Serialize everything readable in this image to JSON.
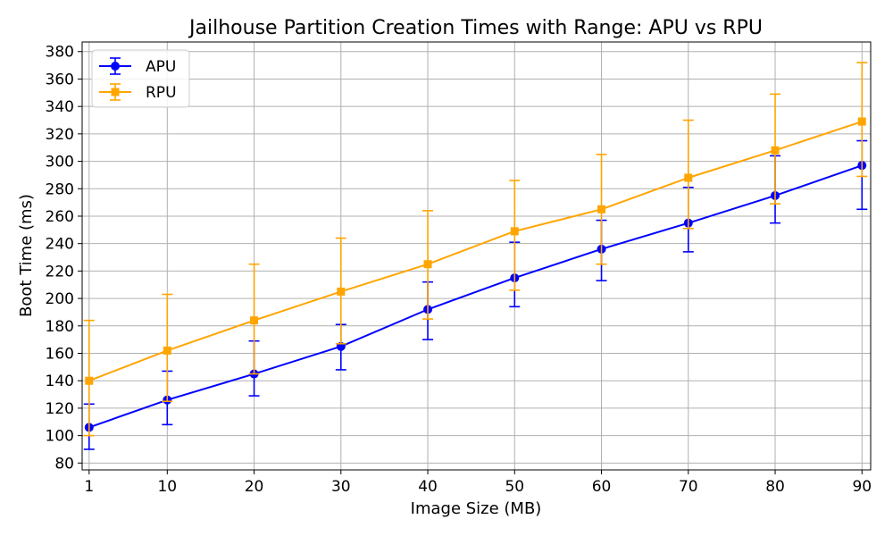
{
  "chart_data": {
    "type": "line",
    "title": "Jailhouse Partition Creation Times with Range: APU vs RPU",
    "xlabel": "Image Size (MB)",
    "ylabel": "Boot Time (ms)",
    "x": [
      1,
      10,
      20,
      30,
      40,
      50,
      60,
      70,
      80,
      90
    ],
    "x_tick_labels": [
      "1",
      "10",
      "20",
      "30",
      "40",
      "50",
      "60",
      "70",
      "80",
      "90"
    ],
    "xlim": [
      0.2,
      91
    ],
    "ylim": [
      75,
      387
    ],
    "y_ticks": [
      80,
      100,
      120,
      140,
      160,
      180,
      200,
      220,
      240,
      260,
      280,
      300,
      320,
      340,
      360,
      380
    ],
    "y_tick_labels": [
      "80",
      "100",
      "120",
      "140",
      "160",
      "180",
      "200",
      "220",
      "240",
      "260",
      "280",
      "300",
      "320",
      "340",
      "360",
      "380"
    ],
    "grid": true,
    "legend_position": "top-left",
    "series": [
      {
        "name": "APU",
        "color": "#0000ff",
        "marker": "circle",
        "values": [
          106,
          126,
          145,
          165,
          192,
          215,
          236,
          255,
          275,
          297
        ],
        "err_low": [
          90,
          108,
          129,
          148,
          170,
          194,
          213,
          234,
          255,
          265
        ],
        "err_high": [
          123,
          147,
          169,
          181,
          212,
          241,
          257,
          281,
          304,
          315
        ]
      },
      {
        "name": "RPU",
        "color": "#ffa500",
        "marker": "square",
        "values": [
          140,
          162,
          184,
          205,
          225,
          249,
          265,
          288,
          308,
          329
        ],
        "err_low": [
          100,
          125,
          145,
          167,
          185,
          206,
          225,
          251,
          269,
          289
        ],
        "err_high": [
          184,
          203,
          225,
          244,
          264,
          286,
          305,
          330,
          349,
          372
        ]
      }
    ]
  }
}
